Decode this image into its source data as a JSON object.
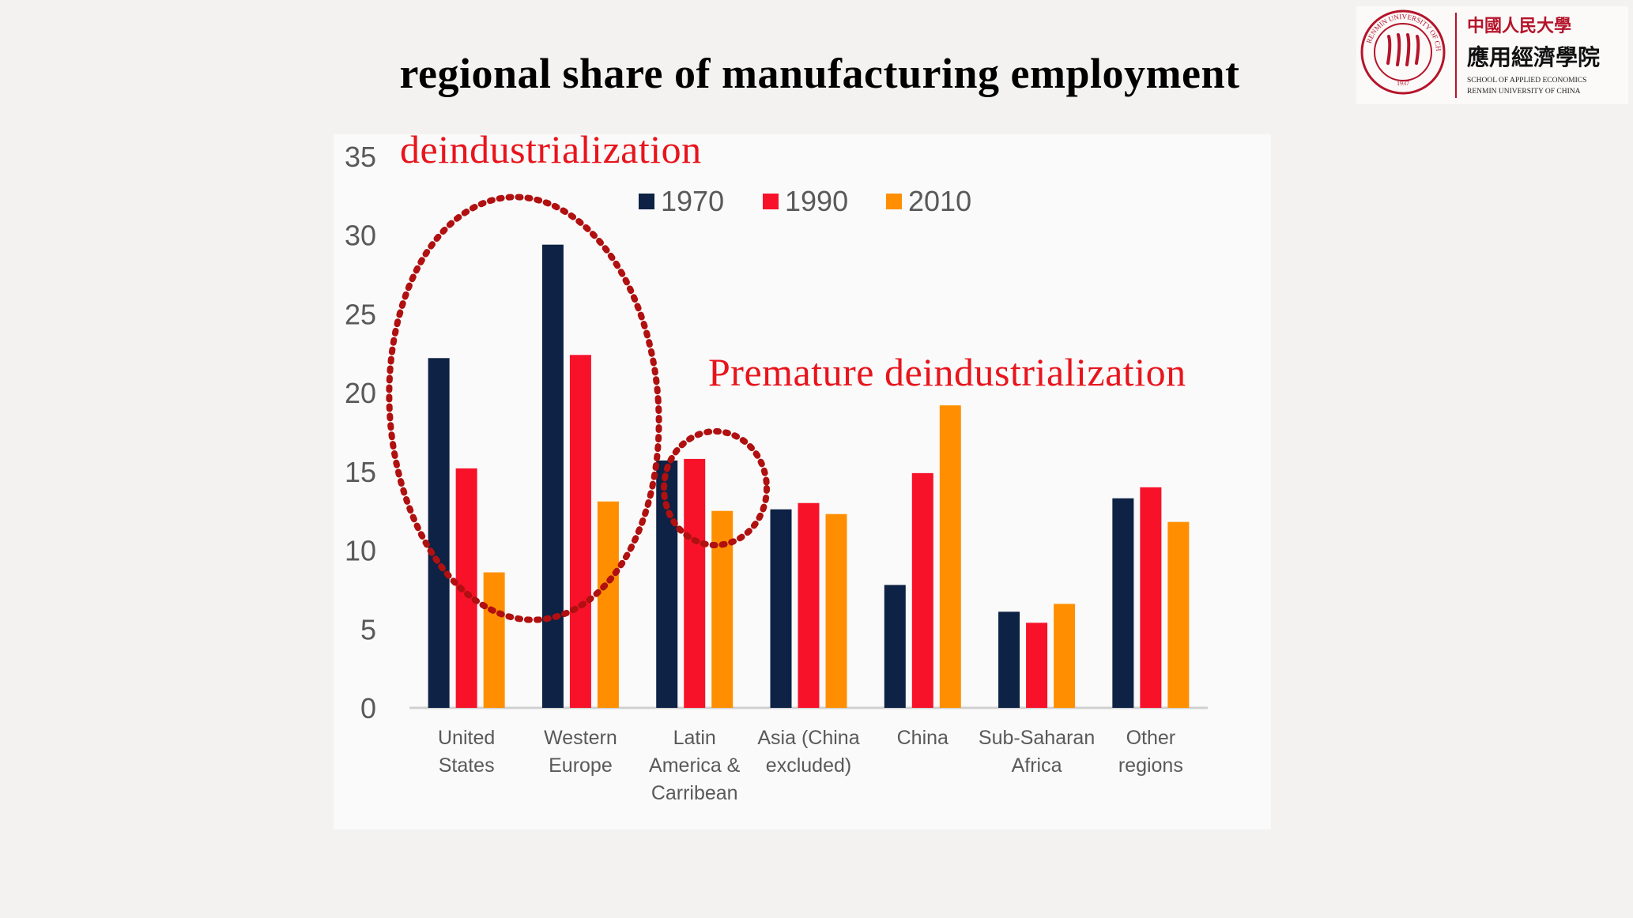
{
  "slide": {
    "title": "regional share of manufacturing employment"
  },
  "logo": {
    "university_cn": "中國人民大學",
    "school_cn": "應用經濟學院",
    "school_en_line1": "SCHOOL OF APPLIED ECONOMICS",
    "school_en_line2": "RENMIN UNIVERSITY OF CHINA",
    "seal_text": "RENMIN UNIVERSITY OF CHINA",
    "seal_year": "1937"
  },
  "annotations": {
    "deindustrialization": "deindustrialization",
    "premature": "Premature deindustrialization"
  },
  "colors": {
    "s1970": "#0d2244",
    "s1990": "#f7122a",
    "s2010": "#ff8f00",
    "annotation": "#e8141c",
    "dotted_circle": "#b01010"
  },
  "chart_data": {
    "type": "bar",
    "title": "",
    "xlabel": "",
    "ylabel": "",
    "ylim": [
      0,
      35
    ],
    "yticks": [
      0,
      5,
      10,
      15,
      20,
      25,
      30,
      35
    ],
    "grid": false,
    "legend_position": "top-center",
    "categories": [
      [
        "United",
        "States"
      ],
      [
        "Western",
        "Europe"
      ],
      [
        "Latin",
        "America &",
        "Carribean"
      ],
      [
        "Asia (China",
        "excluded)"
      ],
      [
        "China"
      ],
      [
        "Sub-Saharan",
        "Africa"
      ],
      [
        "Other",
        "regions"
      ]
    ],
    "series": [
      {
        "name": "1970",
        "color": "#0d2244",
        "values": [
          22.2,
          29.4,
          15.7,
          12.6,
          7.8,
          6.1,
          13.3
        ]
      },
      {
        "name": "1990",
        "color": "#f7122a",
        "values": [
          15.2,
          22.4,
          15.8,
          13.0,
          14.9,
          5.4,
          14.0
        ]
      },
      {
        "name": "2010",
        "color": "#ff8f00",
        "values": [
          8.6,
          13.1,
          12.5,
          12.3,
          19.2,
          6.6,
          11.8
        ]
      }
    ]
  }
}
